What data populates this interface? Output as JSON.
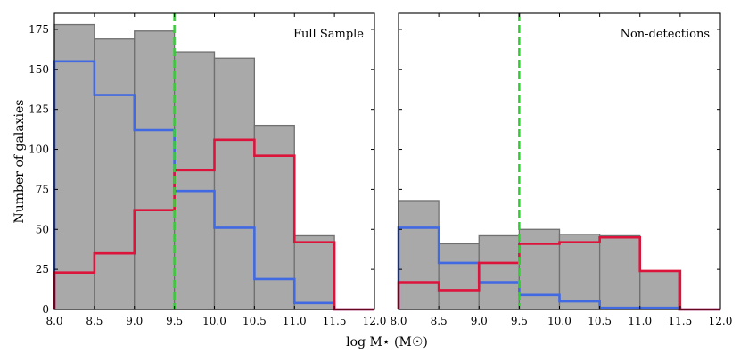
{
  "chart_data": [
    {
      "type": "bar",
      "annotation": "Full Sample",
      "ylabel": "Number of galaxies",
      "xlim": [
        8.0,
        12.0
      ],
      "ylim": [
        0,
        185
      ],
      "bin_edges": [
        8.0,
        8.5,
        9.0,
        9.5,
        10.0,
        10.5,
        11.0,
        11.5,
        12.0
      ],
      "x_tick_labels": [
        "8.0",
        "8.5",
        "9.0",
        "9.5",
        "10.0",
        "10.5",
        "11.0",
        "11.5",
        "12.0"
      ],
      "y_ticks": [
        0,
        25,
        50,
        75,
        100,
        125,
        150,
        175
      ],
      "series": [
        {
          "name": "all",
          "style": "filled",
          "color": "#a9a9a9",
          "values": [
            178,
            169,
            174,
            161,
            157,
            115,
            46,
            0
          ]
        },
        {
          "name": "blue",
          "style": "step",
          "color": "#4169e1",
          "values": [
            155,
            134,
            112,
            74,
            51,
            19,
            4,
            0
          ]
        },
        {
          "name": "red",
          "style": "step",
          "color": "#dc143c",
          "values": [
            23,
            35,
            62,
            87,
            106,
            96,
            42,
            0
          ]
        }
      ],
      "vline": {
        "x": 9.5,
        "color": "#32cd32",
        "style": "dashed"
      }
    },
    {
      "type": "bar",
      "annotation": "Non-detections",
      "ylabel": "",
      "xlim": [
        8.0,
        12.0
      ],
      "ylim": [
        0,
        185
      ],
      "bin_edges": [
        8.0,
        8.5,
        9.0,
        9.5,
        10.0,
        10.5,
        11.0,
        11.5,
        12.0
      ],
      "x_tick_labels": [
        "8.0",
        "8.5",
        "9.0",
        "9.5",
        "10.0",
        "10.5",
        "11.0",
        "11.5",
        "12.0"
      ],
      "y_ticks": [
        0,
        25,
        50,
        75,
        100,
        125,
        150,
        175
      ],
      "series": [
        {
          "name": "all",
          "style": "filled",
          "color": "#a9a9a9",
          "values": [
            68,
            41,
            46,
            50,
            47,
            46,
            24,
            0
          ]
        },
        {
          "name": "blue",
          "style": "step",
          "color": "#4169e1",
          "values": [
            51,
            29,
            17,
            9,
            5,
            1,
            1,
            0
          ]
        },
        {
          "name": "red",
          "style": "step",
          "color": "#dc143c",
          "values": [
            17,
            12,
            29,
            41,
            42,
            45,
            24,
            0
          ]
        }
      ],
      "vline": {
        "x": 9.5,
        "color": "#32cd32",
        "style": "dashed"
      }
    }
  ],
  "shared_xlabel": "log M⋆ (M☉)"
}
